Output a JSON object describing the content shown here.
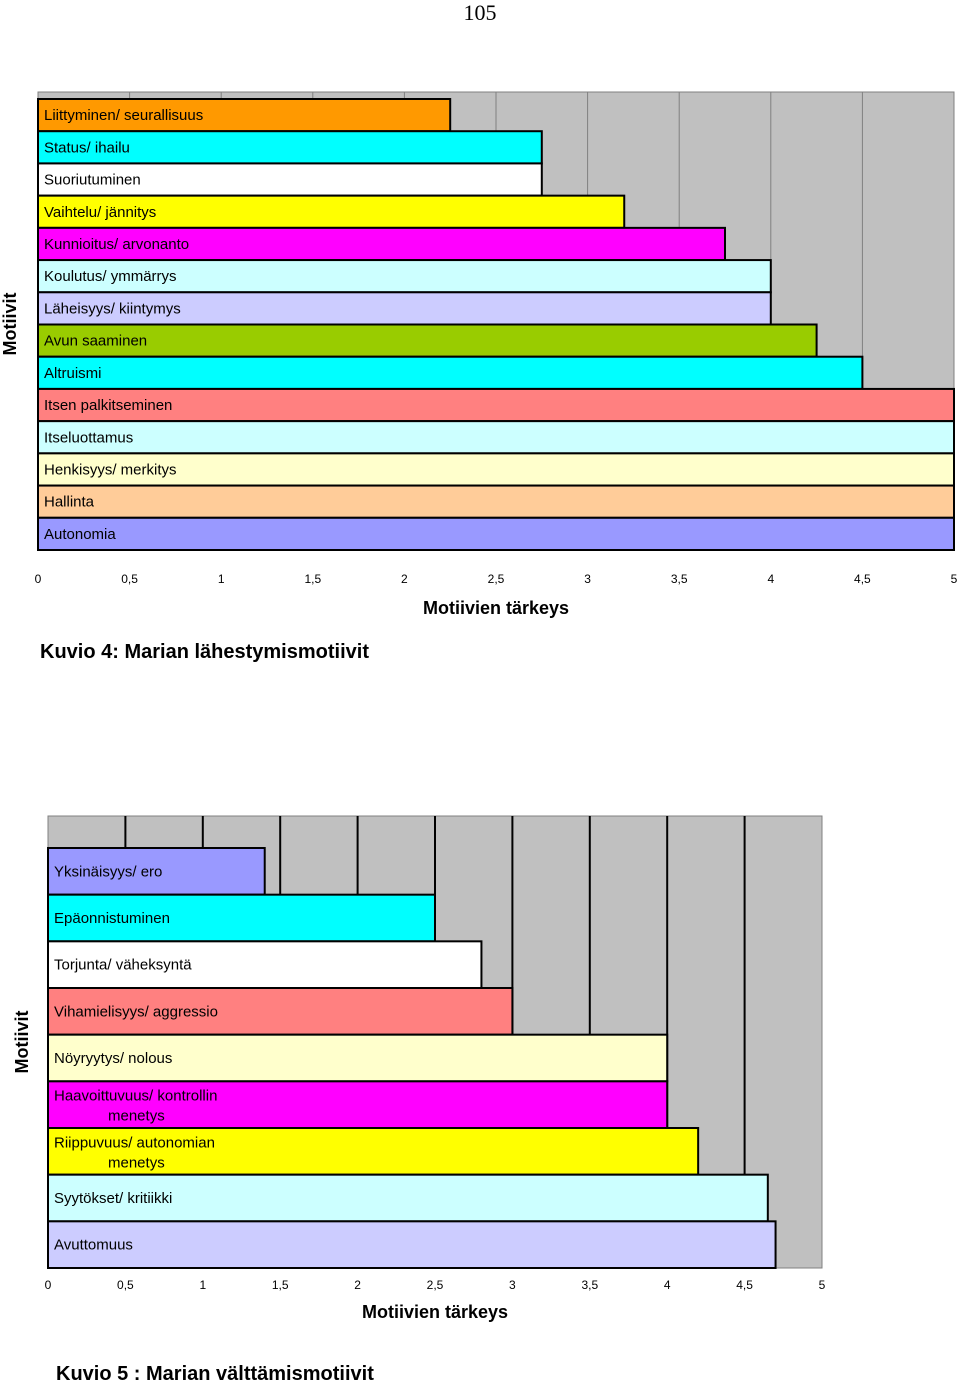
{
  "page_number": "105",
  "chart_data": [
    {
      "type": "bar",
      "orientation": "horizontal",
      "caption": "Kuvio 4: Marian lähestymismotiivit",
      "xlabel": "Motiivien tärkeys",
      "ylabel": "Motiivit",
      "xlim": [
        0,
        5
      ],
      "x_ticks": [
        "0",
        "0,5",
        "1",
        "1,5",
        "2",
        "2,5",
        "3",
        "3,5",
        "4",
        "4,5",
        "5"
      ],
      "grid": true,
      "categories": [
        {
          "label": "Liittyminen/ seurallisuus",
          "value": 2.25,
          "color": "#FF9900"
        },
        {
          "label": "Status/ ihailu",
          "value": 2.75,
          "color": "#00FFFF"
        },
        {
          "label": "Suoriutuminen",
          "value": 2.75,
          "color": "#FFFFFF"
        },
        {
          "label": "Vaihtelu/ jännitys",
          "value": 3.2,
          "color": "#FFFF00"
        },
        {
          "label": "Kunnioitus/ arvonanto",
          "value": 3.75,
          "color": "#FF00FF"
        },
        {
          "label": "Koulutus/ ymmärrys",
          "value": 4.0,
          "color": "#CCFFFF"
        },
        {
          "label": "Läheisyys/ kiintymys",
          "value": 4.0,
          "color": "#CCCCFF"
        },
        {
          "label": "Avun saaminen",
          "value": 4.25,
          "color": "#99CC00"
        },
        {
          "label": "Altruismi",
          "value": 4.5,
          "color": "#00FFFF"
        },
        {
          "label": "Itsen palkitseminen",
          "value": 5.0,
          "color": "#FF8080"
        },
        {
          "label": "Itseluottamus",
          "value": 5.0,
          "color": "#CCFFFF"
        },
        {
          "label": "Henkisyys/ merkitys",
          "value": 5.0,
          "color": "#FFFFCC"
        },
        {
          "label": "Hallinta",
          "value": 5.0,
          "color": "#FFCC99"
        },
        {
          "label": "Autonomia",
          "value": 5.0,
          "color": "#9999FF"
        }
      ]
    },
    {
      "type": "bar",
      "orientation": "horizontal",
      "caption": "Kuvio 5 : Marian välttämismotiivit",
      "xlabel": "Motiivien tärkeys",
      "ylabel": "Motiivit",
      "xlim": [
        0,
        5
      ],
      "x_ticks": [
        "0",
        "0,5",
        "1",
        "1,5",
        "2",
        "2,5",
        "3",
        "3,5",
        "4",
        "4,5",
        "5"
      ],
      "grid": true,
      "categories": [
        {
          "label": "Yksinäisyys/ ero",
          "value": 1.4,
          "color": "#9999FF"
        },
        {
          "label": "Epäonnistuminen",
          "value": 2.5,
          "color": "#00FFFF"
        },
        {
          "label": "Torjunta/ väheksyntä",
          "value": 2.8,
          "color": "#FFFFFF"
        },
        {
          "label": "Vihamielisyys/ aggressio",
          "value": 3.0,
          "color": "#FF8080"
        },
        {
          "label": "Nöyryytys/ nolous",
          "value": 4.0,
          "color": "#FFFFCC"
        },
        {
          "label": "Haavoittuvuus/ kontrollin\nmenetys",
          "value": 4.0,
          "color": "#FF00FF"
        },
        {
          "label": "Riippuvuus/ autonomian\nmenetys",
          "value": 4.2,
          "color": "#FFFF00"
        },
        {
          "label": "Syytökset/ kritiikki",
          "value": 4.65,
          "color": "#CCFFFF"
        },
        {
          "label": "Avuttomuus",
          "value": 4.7,
          "color": "#CCCCFF"
        }
      ]
    }
  ]
}
